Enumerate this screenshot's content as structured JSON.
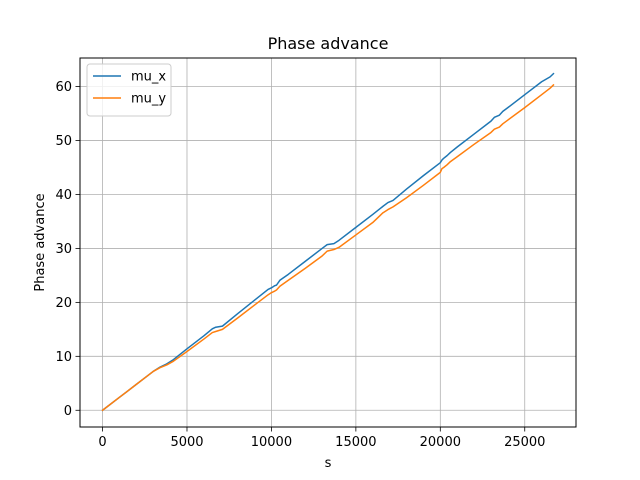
{
  "chart_data": {
    "type": "line",
    "title": "Phase advance",
    "xlabel": "s",
    "ylabel": "Phase advance",
    "xlim": [
      -1335,
      28035
    ],
    "ylim": [
      -3.1,
      65.3
    ],
    "xticks": [
      0,
      5000,
      10000,
      15000,
      20000,
      25000
    ],
    "yticks": [
      0,
      10,
      20,
      30,
      40,
      50,
      60
    ],
    "xtick_labels": [
      "0",
      "5000",
      "10000",
      "15000",
      "20000",
      "25000"
    ],
    "ytick_labels": [
      "0",
      "10",
      "20",
      "30",
      "40",
      "50",
      "60"
    ],
    "grid": true,
    "legend_position": "upper-left",
    "series": [
      {
        "name": "mu_x",
        "color": "#1f77b4",
        "x": [
          0,
          1000,
          2000,
          3000,
          3400,
          3800,
          4200,
          5000,
          6000,
          6500,
          6700,
          7100,
          8000,
          9000,
          9800,
          10000,
          10200,
          10300,
          10500,
          11000,
          12000,
          13000,
          13300,
          13700,
          14000,
          15000,
          16000,
          16600,
          16900,
          17200,
          18000,
          19000,
          20000,
          20100,
          20200,
          20400,
          20600,
          21000,
          22000,
          23000,
          23200,
          23500,
          23700,
          24000,
          25000,
          26000,
          26500,
          26700
        ],
        "y": [
          0,
          2.4,
          4.8,
          7.2,
          8.0,
          8.6,
          9.4,
          11.4,
          13.8,
          15.1,
          15.4,
          15.6,
          17.9,
          20.4,
          22.4,
          22.7,
          23.1,
          23.2,
          24.1,
          25.2,
          27.6,
          30.0,
          30.7,
          30.9,
          31.5,
          33.9,
          36.3,
          37.8,
          38.5,
          38.9,
          41.0,
          43.5,
          45.9,
          46.4,
          46.7,
          47.2,
          47.8,
          48.8,
          51.2,
          53.6,
          54.3,
          54.7,
          55.4,
          56.1,
          58.5,
          60.9,
          61.8,
          62.4
        ]
      },
      {
        "name": "mu_y",
        "color": "#ff7f0e",
        "x": [
          0,
          1000,
          2000,
          3000,
          3400,
          3800,
          4200,
          5000,
          6000,
          6500,
          6700,
          7100,
          8000,
          9000,
          9800,
          10000,
          10200,
          10300,
          10500,
          11000,
          12000,
          13000,
          13300,
          13700,
          14000,
          15000,
          16000,
          16600,
          16900,
          17200,
          18000,
          19000,
          20000,
          20100,
          20200,
          20400,
          20600,
          21000,
          22000,
          23000,
          23200,
          23500,
          23700,
          24000,
          25000,
          26000,
          26500,
          26700
        ],
        "y": [
          0,
          2.4,
          4.8,
          7.2,
          7.9,
          8.4,
          9.1,
          10.9,
          13.2,
          14.4,
          14.6,
          15.0,
          17.1,
          19.5,
          21.4,
          21.8,
          22.1,
          22.3,
          23.0,
          24.1,
          26.3,
          28.6,
          29.5,
          29.8,
          30.2,
          32.5,
          34.8,
          36.6,
          37.2,
          37.7,
          39.4,
          41.7,
          44.1,
          44.8,
          45.0,
          45.5,
          46.1,
          47.0,
          49.3,
          51.5,
          52.1,
          52.5,
          53.1,
          53.8,
          56.1,
          58.5,
          59.7,
          60.3
        ]
      }
    ]
  }
}
